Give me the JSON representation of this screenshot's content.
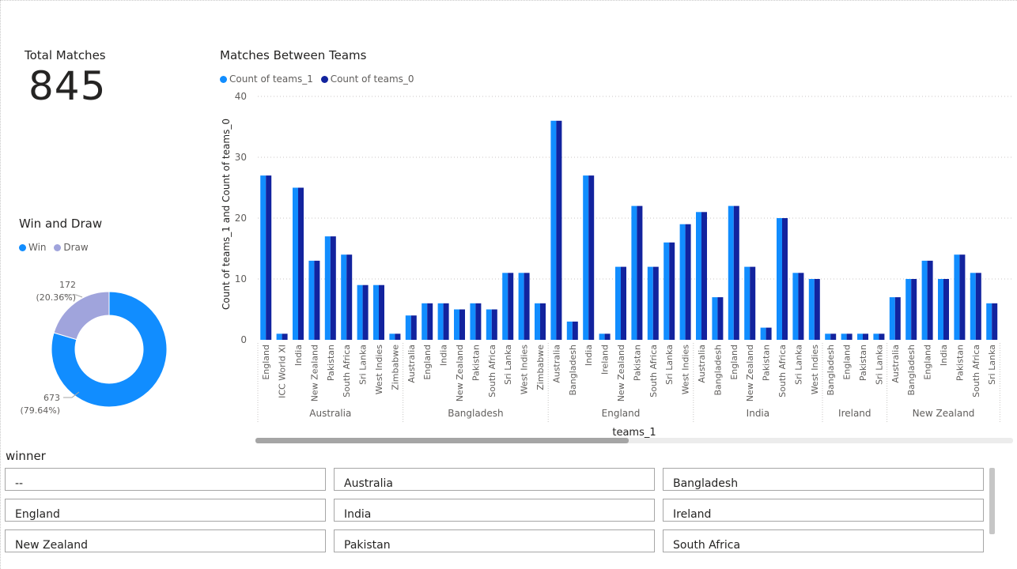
{
  "kpi_card": {
    "title": "Total Matches",
    "value": "845"
  },
  "donut": {
    "title": "Win and Draw",
    "legend": [
      {
        "label": "Win",
        "color": "#118DFF"
      },
      {
        "label": "Draw",
        "color": "#A0A4DC"
      }
    ],
    "labels": {
      "win_value": "673",
      "win_pct": "(79.64%)",
      "draw_value": "172",
      "draw_pct": "(20.36%)"
    }
  },
  "bar_chart": {
    "title": "Matches Between Teams",
    "legend": [
      {
        "label": "Count of teams_1",
        "color": "#118DFF"
      },
      {
        "label": "Count of teams_0",
        "color": "#12239E"
      }
    ]
  },
  "chart_data": [
    {
      "type": "pie",
      "title": "Win and Draw",
      "donut": true,
      "categories": [
        "Win",
        "Draw"
      ],
      "values": [
        673,
        172
      ],
      "percent_labels": [
        "79.64%",
        "20.36%"
      ],
      "colors": [
        "#118DFF",
        "#A0A4DC"
      ],
      "legend_position": "top-left"
    },
    {
      "type": "bar",
      "title": "Matches Between Teams",
      "xlabel": "teams_1",
      "ylabel": "Count of teams_1 and Count of teams_0",
      "ylim": [
        0,
        40
      ],
      "yticks": [
        0,
        10,
        20,
        30,
        40
      ],
      "grid": true,
      "legend_position": "top-left",
      "groups": [
        {
          "name": "Australia",
          "categories": [
            "England",
            "ICC World XI",
            "India",
            "New Zealand",
            "Pakistan",
            "South Africa",
            "Sri Lanka",
            "West Indies",
            "Zimbabwe"
          ]
        },
        {
          "name": "Bangladesh",
          "categories": [
            "Australia",
            "England",
            "India",
            "New Zealand",
            "Pakistan",
            "South Africa",
            "Sri Lanka",
            "West Indies",
            "Zimbabwe"
          ]
        },
        {
          "name": "England",
          "categories": [
            "Australia",
            "Bangladesh",
            "India",
            "Ireland",
            "New Zealand",
            "Pakistan",
            "South Africa",
            "Sri Lanka",
            "West Indies"
          ]
        },
        {
          "name": "India",
          "categories": [
            "Australia",
            "Bangladesh",
            "England",
            "New Zealand",
            "Pakistan",
            "South Africa",
            "Sri Lanka",
            "West Indies"
          ]
        },
        {
          "name": "Ireland",
          "categories": [
            "Bangladesh",
            "England",
            "Pakistan",
            "Sri Lanka"
          ]
        },
        {
          "name": "New Zealand",
          "categories": [
            "Australia",
            "Bangladesh",
            "England",
            "India",
            "Pakistan",
            "South Africa",
            "Sri Lanka"
          ]
        }
      ],
      "series": [
        {
          "name": "Count of teams_1",
          "color": "#118DFF",
          "values": [
            27,
            1,
            25,
            13,
            17,
            14,
            9,
            9,
            1,
            4,
            6,
            6,
            5,
            6,
            5,
            11,
            11,
            6,
            36,
            3,
            27,
            1,
            12,
            22,
            12,
            16,
            19,
            21,
            7,
            22,
            12,
            2,
            20,
            11,
            10,
            1,
            1,
            1,
            1,
            7,
            10,
            13,
            10,
            14,
            11,
            6
          ]
        },
        {
          "name": "Count of teams_0",
          "color": "#12239E",
          "values": [
            27,
            1,
            25,
            13,
            17,
            14,
            9,
            9,
            1,
            4,
            6,
            6,
            5,
            6,
            5,
            11,
            11,
            6,
            36,
            3,
            27,
            1,
            12,
            22,
            12,
            16,
            19,
            21,
            7,
            22,
            12,
            2,
            20,
            11,
            10,
            1,
            1,
            1,
            1,
            7,
            10,
            13,
            10,
            14,
            11,
            6
          ]
        }
      ]
    }
  ],
  "slicer": {
    "title": "winner",
    "items": [
      "--",
      "Australia",
      "Bangladesh",
      "England",
      "India",
      "Ireland",
      "New Zealand",
      "Pakistan",
      "South Africa"
    ]
  }
}
